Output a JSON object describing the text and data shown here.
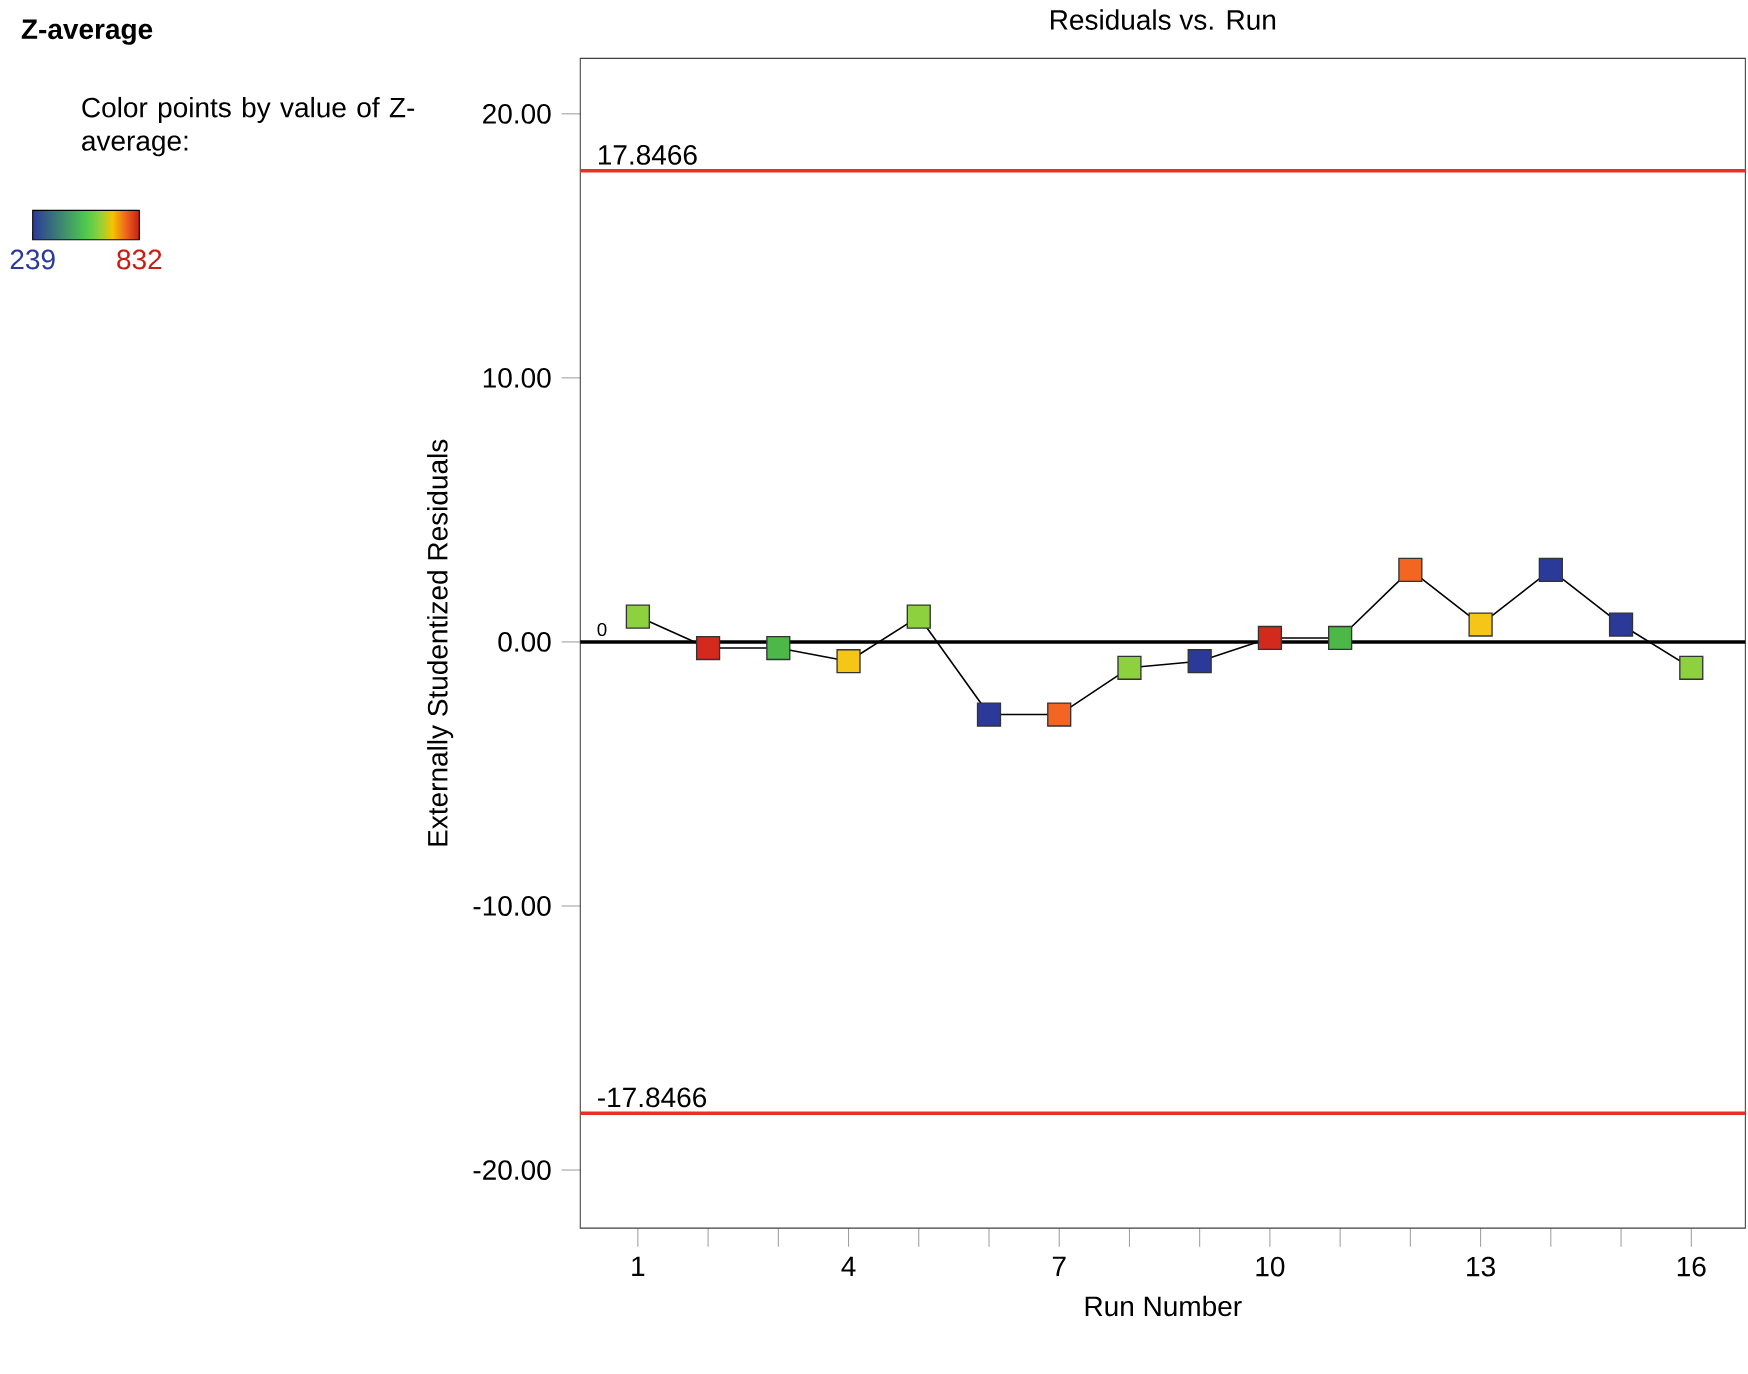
{
  "chart_data": {
    "type": "line",
    "title": "Residuals vs. Run",
    "xlabel": "Run Number",
    "ylabel": "Externally Studentized Residuals",
    "legend_title": "Z-average",
    "clabel": "Color points by value of Z-average:",
    "clim": [
      239,
      832
    ],
    "cticks": [
      239,
      832
    ],
    "marker": "square",
    "x": [
      1,
      2,
      3,
      4,
      5,
      6,
      7,
      8,
      9,
      10,
      11,
      12,
      13,
      14,
      15,
      16
    ],
    "xlim": [
      0.18,
      16.77
    ],
    "xticks": [
      1,
      {
        "value": 2,
        "label": null
      },
      {
        "value": 3,
        "label": null
      },
      4,
      {
        "value": 5,
        "label": null
      },
      {
        "value": 6,
        "label": null
      },
      7,
      {
        "value": 8,
        "label": null
      },
      {
        "value": 9,
        "label": null
      },
      10,
      {
        "value": 11,
        "label": null
      },
      {
        "value": 12,
        "label": null
      },
      13,
      {
        "value": 14,
        "label": null
      },
      {
        "value": 15,
        "label": null
      },
      16
    ],
    "ylim": [
      -22.2,
      22.1
    ],
    "yticks": [
      {
        "value": -20,
        "label": "-20.00"
      },
      {
        "value": -10,
        "label": "-10.00"
      },
      {
        "value": 0,
        "label": "0.00"
      },
      {
        "value": 10,
        "label": "10.00"
      },
      {
        "value": 20,
        "label": "20.00"
      }
    ],
    "series": [
      {
        "type": "line",
        "color": "#000000",
        "values": [
          0.96,
          -0.23,
          -0.23,
          -0.73,
          0.96,
          -2.75,
          -2.75,
          -0.98,
          -0.73,
          0.15,
          0.15,
          2.73,
          0.66,
          2.73,
          0.66,
          -0.98
        ],
        "colors": [
          "#8dd13f",
          "#d42a1e",
          "#4cb848",
          "#f5c518",
          "#8dd13f",
          "#2b3a98",
          "#f26522",
          "#8dd13f",
          "#2b3a98",
          "#d42a1e",
          "#4cb848",
          "#f26522",
          "#f5c518",
          "#2b3a98",
          "#2b3a98",
          "#8dd13f"
        ]
      }
    ],
    "ref_lines": [
      {
        "axis": "y",
        "value": 17.8466,
        "label": "17.8466",
        "color": "#e8302a"
      },
      {
        "axis": "y",
        "value": 0,
        "label": "0",
        "color": "#000000"
      },
      {
        "axis": "y",
        "value": -17.8466,
        "label": "-17.8466",
        "color": "#e8302a"
      }
    ]
  }
}
